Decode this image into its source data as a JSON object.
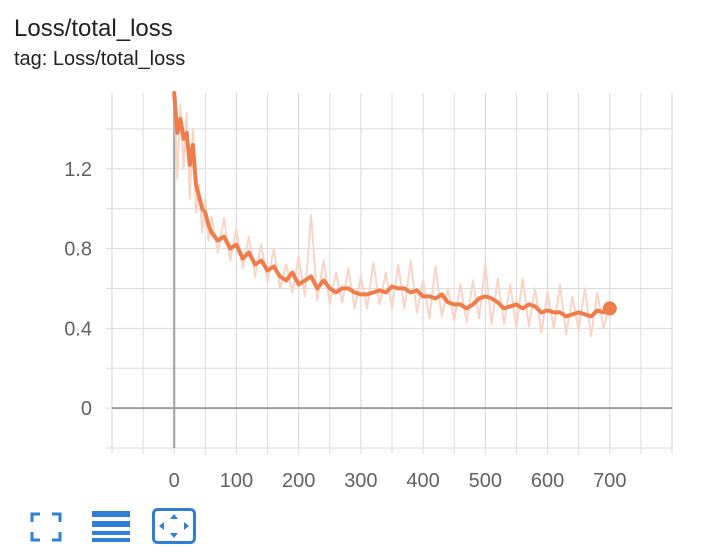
{
  "card": {
    "title": "Loss/total_loss",
    "tag": "tag: Loss/total_loss"
  },
  "colors": {
    "series": "#f07c4a",
    "raw": "#f9d5c6",
    "grid": "#dcdcdc",
    "axis": "#9e9e9e",
    "button": "#2f7fd8"
  },
  "toolbar": {
    "icons": [
      "fullscreen-icon",
      "data-table-icon",
      "fit-domain-icon"
    ]
  },
  "chart_data": {
    "type": "line",
    "title": "",
    "xlabel": "",
    "ylabel": "",
    "xlim": [
      -100,
      800
    ],
    "ylim": [
      -0.2,
      1.58
    ],
    "x_ticks": [
      0,
      100,
      200,
      300,
      400,
      500,
      600,
      700
    ],
    "y_ticks": [
      0,
      0.4,
      0.8,
      1.2
    ],
    "grid": true,
    "series": [
      {
        "style": "smoothed",
        "x": [
          0,
          5,
          10,
          15,
          20,
          25,
          30,
          35,
          40,
          45,
          50,
          55,
          60,
          70,
          80,
          90,
          100,
          110,
          120,
          130,
          140,
          150,
          160,
          170,
          180,
          190,
          200,
          210,
          220,
          230,
          240,
          250,
          260,
          270,
          280,
          290,
          300,
          310,
          320,
          330,
          340,
          350,
          360,
          370,
          380,
          390,
          400,
          410,
          420,
          430,
          440,
          450,
          460,
          470,
          480,
          490,
          500,
          510,
          520,
          530,
          540,
          550,
          560,
          570,
          580,
          590,
          600,
          610,
          620,
          630,
          640,
          650,
          660,
          670,
          680,
          690,
          700
        ],
        "values": [
          1.58,
          1.38,
          1.45,
          1.35,
          1.38,
          1.22,
          1.32,
          1.12,
          1.06,
          1.0,
          0.98,
          0.92,
          0.88,
          0.84,
          0.86,
          0.8,
          0.82,
          0.75,
          0.78,
          0.72,
          0.74,
          0.69,
          0.71,
          0.66,
          0.64,
          0.68,
          0.62,
          0.64,
          0.66,
          0.6,
          0.64,
          0.6,
          0.58,
          0.6,
          0.6,
          0.58,
          0.57,
          0.57,
          0.58,
          0.59,
          0.58,
          0.61,
          0.6,
          0.6,
          0.58,
          0.59,
          0.56,
          0.56,
          0.55,
          0.57,
          0.53,
          0.52,
          0.52,
          0.5,
          0.52,
          0.55,
          0.56,
          0.55,
          0.53,
          0.5,
          0.51,
          0.52,
          0.5,
          0.52,
          0.51,
          0.48,
          0.49,
          0.48,
          0.48,
          0.46,
          0.47,
          0.48,
          0.47,
          0.46,
          0.49,
          0.48,
          0.5
        ]
      },
      {
        "style": "raw",
        "x": [
          0,
          5,
          10,
          15,
          20,
          25,
          30,
          35,
          40,
          45,
          50,
          55,
          60,
          70,
          80,
          90,
          100,
          110,
          120,
          130,
          140,
          150,
          160,
          170,
          180,
          190,
          200,
          210,
          220,
          230,
          240,
          250,
          260,
          270,
          280,
          290,
          300,
          310,
          320,
          330,
          340,
          350,
          360,
          370,
          380,
          390,
          400,
          410,
          420,
          430,
          440,
          450,
          460,
          470,
          480,
          490,
          500,
          510,
          520,
          530,
          540,
          550,
          560,
          570,
          580,
          590,
          600,
          610,
          620,
          630,
          640,
          650,
          660,
          670,
          680,
          690,
          700
        ],
        "values": [
          1.58,
          1.15,
          1.52,
          1.2,
          1.48,
          1.05,
          1.4,
          0.98,
          1.12,
          0.88,
          1.05,
          0.84,
          0.96,
          0.78,
          0.95,
          0.74,
          0.9,
          0.7,
          0.86,
          0.66,
          0.82,
          0.63,
          0.8,
          0.6,
          0.72,
          0.58,
          0.76,
          0.56,
          0.97,
          0.54,
          0.74,
          0.52,
          0.68,
          0.53,
          0.7,
          0.5,
          0.66,
          0.5,
          0.73,
          0.52,
          0.68,
          0.5,
          0.72,
          0.5,
          0.74,
          0.48,
          0.64,
          0.45,
          0.71,
          0.46,
          0.6,
          0.44,
          0.62,
          0.43,
          0.64,
          0.45,
          0.72,
          0.42,
          0.65,
          0.42,
          0.62,
          0.4,
          0.65,
          0.41,
          0.6,
          0.38,
          0.58,
          0.4,
          0.62,
          0.37,
          0.56,
          0.39,
          0.6,
          0.36,
          0.58,
          0.4,
          0.52
        ]
      }
    ],
    "current_point": {
      "x": 700,
      "y": 0.5
    }
  }
}
